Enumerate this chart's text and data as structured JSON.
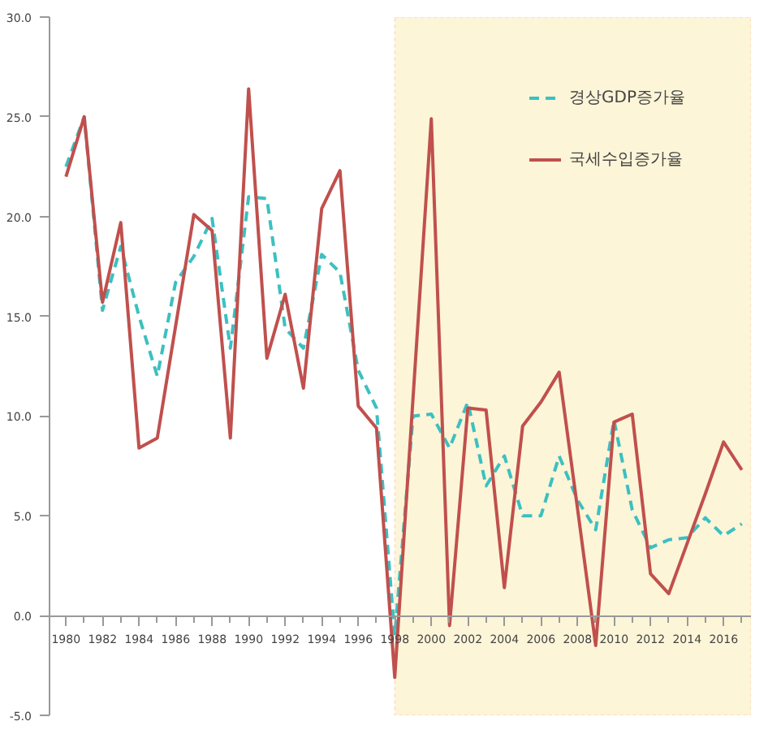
{
  "chart_data": {
    "type": "line",
    "x": [
      1980,
      1981,
      1982,
      1983,
      1984,
      1985,
      1986,
      1987,
      1988,
      1989,
      1990,
      1991,
      1992,
      1993,
      1994,
      1995,
      1996,
      1997,
      1998,
      1999,
      2000,
      2001,
      2002,
      2003,
      2004,
      2005,
      2006,
      2007,
      2008,
      2009,
      2010,
      2011,
      2012,
      2013,
      2014,
      2015,
      2016,
      2017
    ],
    "series": [
      {
        "name": "경상GDP증가율",
        "color": "#3cc0c0",
        "line_style": "dashed",
        "values": [
          22.5,
          25.0,
          15.3,
          18.5,
          15.0,
          12.0,
          16.7,
          18.0,
          19.9,
          13.4,
          21.0,
          20.9,
          14.4,
          13.4,
          18.1,
          17.2,
          12.3,
          10.4,
          -1.0,
          10.0,
          10.1,
          8.4,
          10.7,
          6.5,
          8.0,
          5.0,
          5.0,
          8.0,
          5.8,
          4.3,
          9.8,
          5.3,
          3.4,
          3.8,
          3.9,
          4.9,
          4.0,
          4.6
        ]
      },
      {
        "name": "국세수입증가율",
        "color": "#c0504d",
        "line_style": "solid",
        "values": [
          22.0,
          25.0,
          15.7,
          19.7,
          8.4,
          8.9,
          14.5,
          20.1,
          19.3,
          8.9,
          26.4,
          12.9,
          16.1,
          11.4,
          20.4,
          22.3,
          10.5,
          9.4,
          -3.1,
          10.9,
          24.9,
          -0.5,
          10.4,
          10.3,
          1.4,
          9.5,
          10.7,
          12.2,
          5.4,
          -1.5,
          9.7,
          10.1,
          2.1,
          1.1,
          3.6,
          6.1,
          8.7,
          7.3
        ]
      }
    ],
    "xlim": [
      1979.1,
      2017.5
    ],
    "xticks": [
      1980,
      1982,
      1984,
      1986,
      1988,
      1990,
      1992,
      1994,
      1996,
      1998,
      2000,
      2002,
      2004,
      2006,
      2008,
      2010,
      2012,
      2014,
      2016
    ],
    "ylim": [
      -5,
      30
    ],
    "yticks": [
      {
        "value": -5,
        "label": "-5.0"
      },
      {
        "value": 0,
        "label": "0.0"
      },
      {
        "value": 5,
        "label": "5.0"
      },
      {
        "value": 10,
        "label": "10.0"
      },
      {
        "value": 15,
        "label": "15.0"
      },
      {
        "value": 20,
        "label": "20.0"
      },
      {
        "value": 25,
        "label": "25.0"
      },
      {
        "value": 30,
        "label": "30.0"
      }
    ],
    "bands": [
      {
        "axis": "x",
        "from": 1998,
        "to": 2017.5,
        "color": "#fdf5d8"
      }
    ],
    "grid": false,
    "legend": "top right",
    "marker": "none"
  }
}
